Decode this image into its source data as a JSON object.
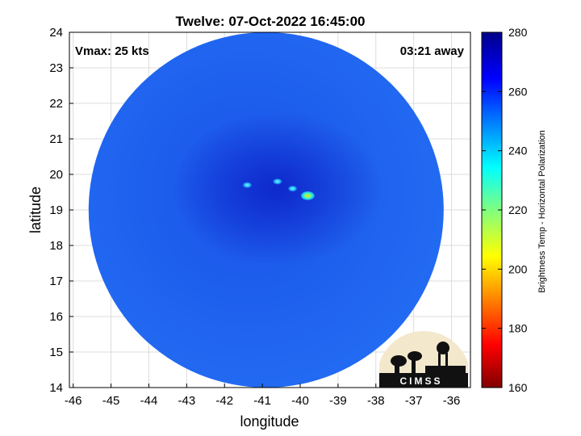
{
  "title": "Twelve: 07-Oct-2022 16:45:00",
  "annotations": {
    "vmax": "Vmax: 25 kts",
    "time_away": "03:21 away"
  },
  "axes": {
    "xlabel": "longitude",
    "ylabel": "latitude",
    "x_ticks": [
      "-46",
      "-45",
      "-44",
      "-43",
      "-42",
      "-41",
      "-40",
      "-39",
      "-38",
      "-37",
      "-36"
    ],
    "y_ticks": [
      "14",
      "15",
      "16",
      "17",
      "18",
      "19",
      "20",
      "21",
      "22",
      "23",
      "24"
    ],
    "xlim": [
      -46.1,
      -35.5
    ],
    "ylim": [
      14,
      24
    ],
    "grid": true
  },
  "colorbar": {
    "label": "Brightness Temp - Horizontal Polarization",
    "ticks": [
      "280",
      "260",
      "240",
      "220",
      "200",
      "180",
      "160"
    ],
    "range": [
      160,
      280
    ],
    "colormap": "jet"
  },
  "logo": {
    "text": "CIMSS"
  },
  "chart_data": {
    "type": "heatmap",
    "title": "Twelve: 07-Oct-2022 16:45:00",
    "xlabel": "longitude",
    "ylabel": "latitude",
    "xlim": [
      -46.1,
      -35.5
    ],
    "ylim": [
      14,
      24
    ],
    "value_range": [
      160,
      280
    ],
    "value_label": "Brightness Temp - Horizontal Polarization",
    "background_value_approx": 255,
    "swath": {
      "shape": "disk",
      "center_lon": -40.9,
      "center_lat": 19.0,
      "radius_deg_lat": 5.0
    },
    "features": [
      {
        "lon": -39.8,
        "lat": 19.4,
        "value": 200
      },
      {
        "lon": -40.6,
        "lat": 19.8,
        "value": 236
      },
      {
        "lon": -41.4,
        "lat": 19.7,
        "value": 240
      },
      {
        "lon": -40.2,
        "lat": 19.6,
        "value": 245
      }
    ]
  },
  "colors": {
    "swath": "#1f63f0",
    "core": "#0f2fd8",
    "axes": "#000000"
  }
}
